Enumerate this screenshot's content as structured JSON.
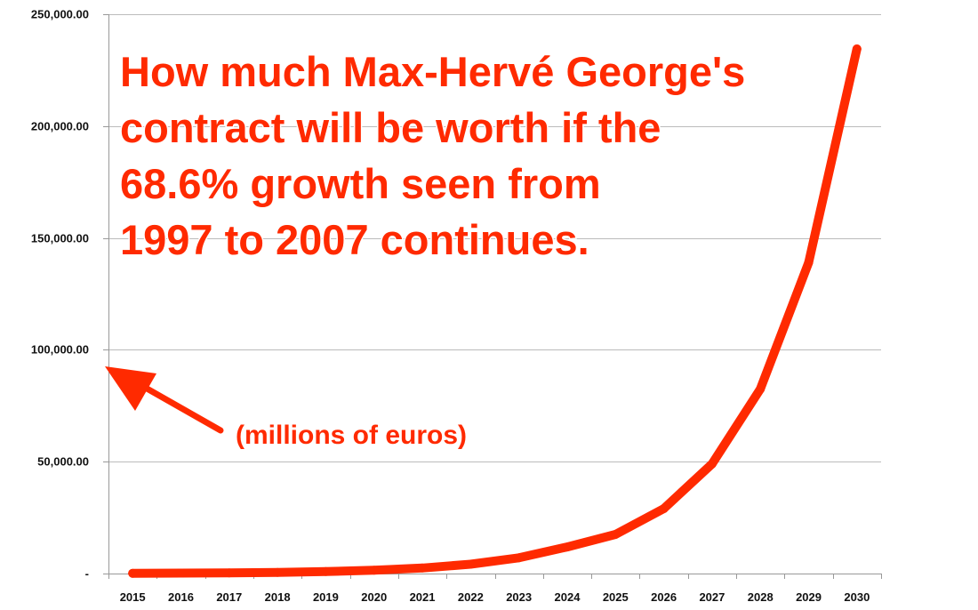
{
  "chart_data": {
    "type": "line",
    "title_lines": [
      "How much Max-Hervé George's",
      "contract will be worth if the",
      "68.6% growth seen from",
      "1997 to 2007 continues."
    ],
    "annotation": "(millions of euros)",
    "xlabel": "",
    "ylabel": "",
    "categories": [
      "2015",
      "2016",
      "2017",
      "2018",
      "2019",
      "2020",
      "2021",
      "2022",
      "2023",
      "2024",
      "2025",
      "2026",
      "2027",
      "2028",
      "2029",
      "2030"
    ],
    "series": [
      {
        "values": [
          108,
          182,
          307,
          517,
          872,
          1470,
          2479,
          4179,
          7045,
          11878,
          17500,
          29000,
          49000,
          82500,
          139000,
          234500
        ]
      }
    ],
    "ylim": [
      0,
      250000
    ],
    "yticks": [
      0,
      50000,
      100000,
      150000,
      200000,
      250000
    ],
    "ytick_labels": [
      "-",
      "50,000.00",
      "100,000.00",
      "150,000.00",
      "200,000.00",
      "250,000.00"
    ],
    "grid": true,
    "legend": "none",
    "colors": {
      "line": "#ff2a00",
      "annotation": "#ff2a00",
      "grid": "#bbbbbb",
      "axis": "#999999",
      "text": "#111111"
    }
  }
}
